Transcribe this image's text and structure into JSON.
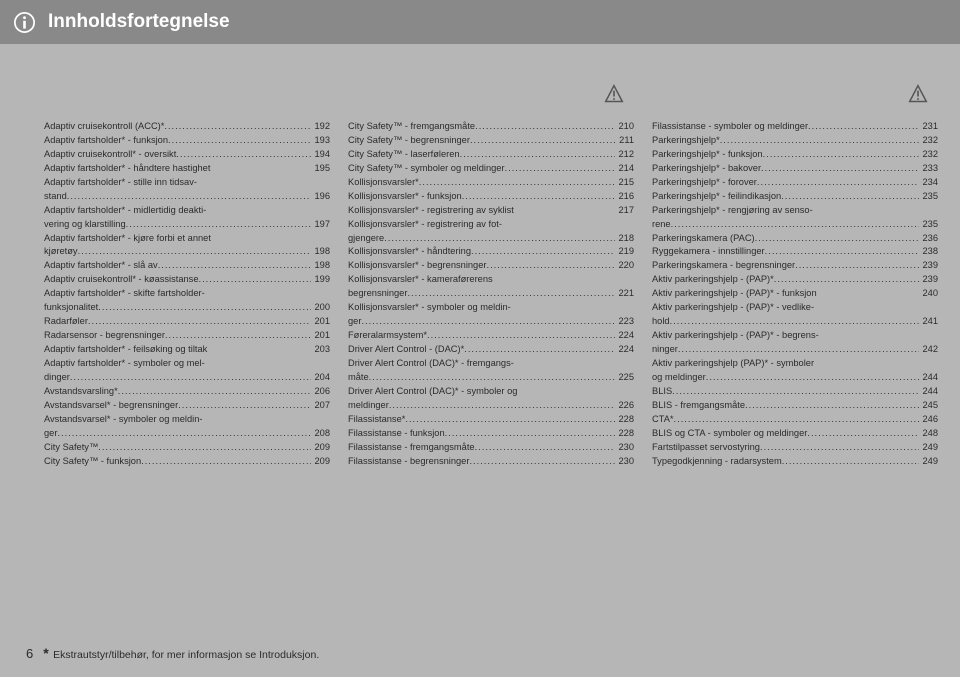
{
  "header": {
    "title": "Innholdsfortegnelse"
  },
  "footer": {
    "page_number": "6",
    "star": "*",
    "note": "Ekstrautstyr/tilbehør, for mer informasjon se Introduksjon."
  },
  "watermark": "",
  "columns": [
    {
      "show_warning": false,
      "entries": [
        {
          "text": "Adaptiv cruisekontroll (ACC)*",
          "page": "192"
        },
        {
          "text": "Adaptiv fartsholder* - funksjon",
          "page": "193"
        },
        {
          "text": "Adaptiv cruisekontroll* - oversikt",
          "page": "194"
        },
        {
          "text": "Adaptiv fartsholder* - håndtere hastighet",
          "page": "195",
          "nodots": true
        },
        {
          "text": "Adaptiv fartsholder* - stille inn tidsav-",
          "cont": true
        },
        {
          "text": "stand",
          "page": "196"
        },
        {
          "text": "Adaptiv fartsholder* - midlertidig deakti-",
          "cont": true
        },
        {
          "text": "vering og klarstilling",
          "page": "197"
        },
        {
          "text": "Adaptiv fartsholder* - kjøre forbi et annet",
          "cont": true
        },
        {
          "text": "kjøretøy",
          "page": "198"
        },
        {
          "text": "Adaptiv fartsholder* - slå av",
          "page": "198"
        },
        {
          "text": "Adaptiv cruisekontroll* - køassistanse",
          "page": "199"
        },
        {
          "text": "Adaptiv fartsholder* - skifte fartsholder-",
          "cont": true
        },
        {
          "text": "funksjonalitet",
          "page": "200"
        },
        {
          "text": "Radarføler",
          "page": "201"
        },
        {
          "text": "Radarsensor - begrensninger",
          "page": "201"
        },
        {
          "text": "Adaptiv fartsholder* - feilsøking og tiltak",
          "page": "203",
          "nodots": true
        },
        {
          "text": "Adaptiv fartsholder* - symboler og mel-",
          "cont": true
        },
        {
          "text": "dinger",
          "page": "204"
        },
        {
          "text": "Avstandsvarsling*",
          "page": "206"
        },
        {
          "text": "Avstandsvarsel* - begrensninger",
          "page": "207"
        },
        {
          "text": "Avstandsvarsel* - symboler og meldin-",
          "cont": true
        },
        {
          "text": "ger",
          "page": "208"
        },
        {
          "text": "City Safety™",
          "page": "209"
        },
        {
          "text": "City Safety™ - funksjon",
          "page": "209"
        }
      ]
    },
    {
      "show_warning": true,
      "entries": [
        {
          "text": "City Safety™ - fremgangsmåte",
          "page": "210"
        },
        {
          "text": "City Safety™ - begrensninger",
          "page": "211"
        },
        {
          "text": "City Safety™ - laserføleren",
          "page": "212"
        },
        {
          "text": "City Safety™ - symboler og meldinger",
          "page": "214"
        },
        {
          "text": "Kollisjonsvarsler*",
          "page": "215"
        },
        {
          "text": "Kollisjonsvarsler* - funksjon",
          "page": "216"
        },
        {
          "text": "Kollisjonsvarsler* - registrering av syklist",
          "page": "217",
          "nodots": true
        },
        {
          "text": "Kollisjonsvarsler* - registrering av fot-",
          "cont": true
        },
        {
          "text": "gjengere",
          "page": "218"
        },
        {
          "text": "Kollisjonsvarsler* - håndtering",
          "page": "219"
        },
        {
          "text": "Kollisjonsvarsler* - begrensninger",
          "page": "220"
        },
        {
          "text": "Kollisjonsvarsler* - kameraførerens",
          "cont": true
        },
        {
          "text": "begrensninger",
          "page": "221"
        },
        {
          "text": "Kollisjonsvarsler* - symboler og meldin-",
          "cont": true
        },
        {
          "text": "ger",
          "page": "223"
        },
        {
          "text": "Føreralarmsystem*",
          "page": "224"
        },
        {
          "text": "Driver Alert Control - (DAC)*",
          "page": "224"
        },
        {
          "text": "Driver Alert Control (DAC)* - fremgangs-",
          "cont": true
        },
        {
          "text": "måte",
          "page": "225"
        },
        {
          "text": "Driver Alert Control (DAC)* - symboler og",
          "cont": true
        },
        {
          "text": "meldinger",
          "page": "226"
        },
        {
          "text": "Filassistanse*",
          "page": "228"
        },
        {
          "text": "Filassistanse - funksjon",
          "page": "228"
        },
        {
          "text": "Filassistanse - fremgangsmåte",
          "page": "230"
        },
        {
          "text": "Filassistanse - begrensninger",
          "page": "230"
        }
      ]
    },
    {
      "show_warning": true,
      "entries": [
        {
          "text": "Filassistanse - symboler og meldinger",
          "page": "231"
        },
        {
          "text": "Parkeringshjelp*",
          "page": "232"
        },
        {
          "text": "Parkeringshjelp* - funksjon",
          "page": "232"
        },
        {
          "text": "Parkeringshjelp* - bakover",
          "page": "233"
        },
        {
          "text": "Parkeringshjelp* - forover",
          "page": "234"
        },
        {
          "text": "Parkeringshjelp* - feilindikasjon",
          "page": "235"
        },
        {
          "text": "Parkeringshjelp* - rengjøring av senso-",
          "cont": true
        },
        {
          "text": "rene",
          "page": "235"
        },
        {
          "text": "Parkeringskamera (PAC)",
          "page": "236"
        },
        {
          "text": "Ryggekamera - innstillinger",
          "page": "238"
        },
        {
          "text": "Parkeringskamera - begrensninger",
          "page": "239"
        },
        {
          "text": "Aktiv parkeringshjelp - (PAP)*",
          "page": "239"
        },
        {
          "text": "Aktiv parkeringshjelp - (PAP)* - funksjon",
          "page": "240",
          "nodots": true
        },
        {
          "text": "Aktiv parkeringshjelp - (PAP)* - vedlike-",
          "cont": true
        },
        {
          "text": "hold",
          "page": "241"
        },
        {
          "text": "Aktiv parkeringshjelp - (PAP)* - begrens-",
          "cont": true
        },
        {
          "text": "ninger",
          "page": "242"
        },
        {
          "text": "Aktiv parkeringshjelp (PAP)* - symboler",
          "cont": true
        },
        {
          "text": "og meldinger",
          "page": "244"
        },
        {
          "text": "BLIS",
          "page": "244"
        },
        {
          "text": "BLIS - fremgangsmåte",
          "page": "245"
        },
        {
          "text": "CTA*",
          "page": "246"
        },
        {
          "text": "BLIS og CTA - symboler og meldinger",
          "page": "248"
        },
        {
          "text": "Fartstilpasset servostyring",
          "page": "249"
        },
        {
          "text": "Typegodkjenning - radarsystem",
          "page": "249"
        }
      ]
    }
  ]
}
